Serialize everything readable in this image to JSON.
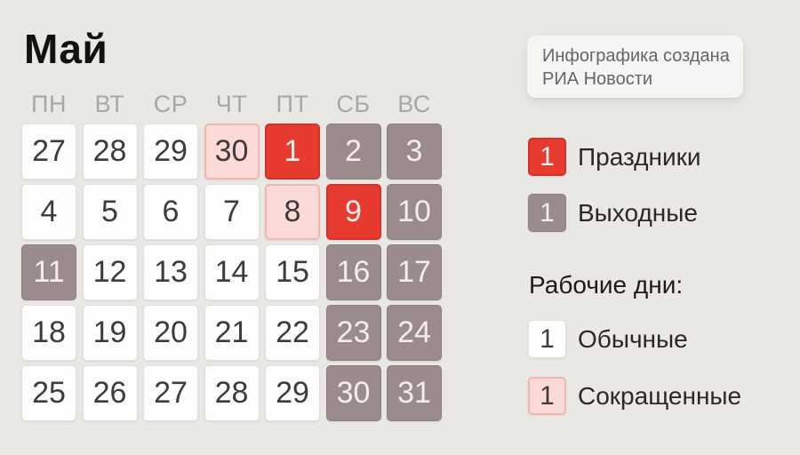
{
  "title": "Май",
  "info_card": {
    "line1": "Инфографика создана",
    "line2": "РИА Новости"
  },
  "weekdays": [
    "ПН",
    "ВТ",
    "СР",
    "ЧТ",
    "ПТ",
    "СБ",
    "ВС"
  ],
  "calendar": {
    "days": [
      {
        "label": "27",
        "type": "normal"
      },
      {
        "label": "28",
        "type": "normal"
      },
      {
        "label": "29",
        "type": "normal"
      },
      {
        "label": "30",
        "type": "short"
      },
      {
        "label": "1",
        "type": "holiday"
      },
      {
        "label": "2",
        "type": "weekend"
      },
      {
        "label": "3",
        "type": "weekend"
      },
      {
        "label": "4",
        "type": "normal"
      },
      {
        "label": "5",
        "type": "normal"
      },
      {
        "label": "6",
        "type": "normal"
      },
      {
        "label": "7",
        "type": "normal"
      },
      {
        "label": "8",
        "type": "short"
      },
      {
        "label": "9",
        "type": "holiday"
      },
      {
        "label": "10",
        "type": "weekend"
      },
      {
        "label": "11",
        "type": "weekend"
      },
      {
        "label": "12",
        "type": "normal"
      },
      {
        "label": "13",
        "type": "normal"
      },
      {
        "label": "14",
        "type": "normal"
      },
      {
        "label": "15",
        "type": "normal"
      },
      {
        "label": "16",
        "type": "weekend"
      },
      {
        "label": "17",
        "type": "weekend"
      },
      {
        "label": "18",
        "type": "normal"
      },
      {
        "label": "19",
        "type": "normal"
      },
      {
        "label": "20",
        "type": "normal"
      },
      {
        "label": "21",
        "type": "normal"
      },
      {
        "label": "22",
        "type": "normal"
      },
      {
        "label": "23",
        "type": "weekend"
      },
      {
        "label": "24",
        "type": "weekend"
      },
      {
        "label": "25",
        "type": "normal"
      },
      {
        "label": "26",
        "type": "normal"
      },
      {
        "label": "27",
        "type": "normal"
      },
      {
        "label": "28",
        "type": "normal"
      },
      {
        "label": "29",
        "type": "normal"
      },
      {
        "label": "30",
        "type": "weekend"
      },
      {
        "label": "31",
        "type": "weekend"
      }
    ]
  },
  "legend": {
    "holidays": {
      "swatch": "1",
      "label": "Праздники"
    },
    "weekends": {
      "swatch": "1",
      "label": "Выходные"
    },
    "working_heading": "Рабочие дни:",
    "normal": {
      "swatch": "1",
      "label": "Обычные"
    },
    "short": {
      "swatch": "1",
      "label": "Сокращенные"
    }
  },
  "colors": {
    "background": "#e9e8e5",
    "holiday": "#e83b30",
    "weekend": "#9b8b8a",
    "short_bg": "#fcdad7",
    "short_border": "#f3b5b1",
    "normal_bg": "#fdfdfd"
  }
}
